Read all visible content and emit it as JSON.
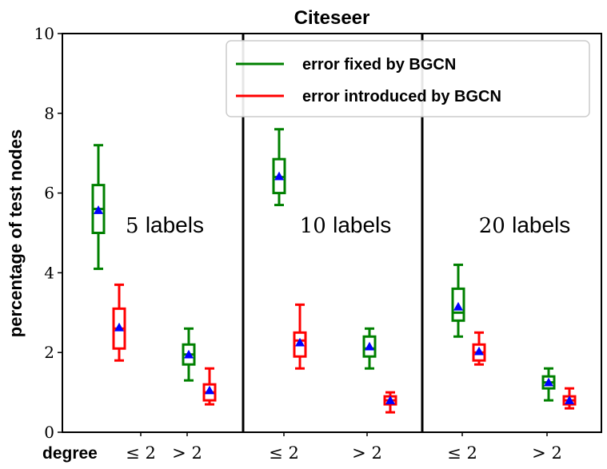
{
  "chart_data": {
    "type": "box",
    "title": "Citeseer",
    "ylabel": "percentage of test nodes",
    "ylim": [
      0,
      10
    ],
    "yticks": [
      "0",
      "2",
      "4",
      "6",
      "8",
      "10"
    ],
    "x_prefix": "degree",
    "groups": [
      {
        "label": "5 labels",
        "label_num": "5",
        "label_word": "labels",
        "categories": [
          {
            "tick": "≤ 2",
            "boxes": [
              {
                "series": 0,
                "whisker_low": 4.1,
                "q1": 5.0,
                "median": 5.6,
                "q3": 6.2,
                "whisker_high": 7.2,
                "mean": 5.57
              },
              {
                "series": 1,
                "whisker_low": 1.8,
                "q1": 2.1,
                "median": 2.6,
                "q3": 3.1,
                "whisker_high": 3.7,
                "mean": 2.63
              }
            ]
          },
          {
            "tick": "> 2",
            "boxes": [
              {
                "series": 0,
                "whisker_low": 1.3,
                "q1": 1.7,
                "median": 1.95,
                "q3": 2.2,
                "whisker_high": 2.6,
                "mean": 1.95
              },
              {
                "series": 1,
                "whisker_low": 0.7,
                "q1": 0.8,
                "median": 1.0,
                "q3": 1.2,
                "whisker_high": 1.6,
                "mean": 1.05
              }
            ]
          }
        ]
      },
      {
        "label": "10 labels",
        "label_num": "10",
        "label_word": "labels",
        "categories": [
          {
            "tick": "≤ 2",
            "boxes": [
              {
                "series": 0,
                "whisker_low": 5.7,
                "q1": 6.0,
                "median": 6.4,
                "q3": 6.85,
                "whisker_high": 7.6,
                "mean": 6.42
              },
              {
                "series": 1,
                "whisker_low": 1.6,
                "q1": 1.9,
                "median": 2.3,
                "q3": 2.5,
                "whisker_high": 3.2,
                "mean": 2.25
              }
            ]
          },
          {
            "tick": "> 2",
            "boxes": [
              {
                "series": 0,
                "whisker_low": 1.6,
                "q1": 1.9,
                "median": 2.1,
                "q3": 2.4,
                "whisker_high": 2.6,
                "mean": 2.15
              },
              {
                "series": 1,
                "whisker_low": 0.5,
                "q1": 0.7,
                "median": 0.8,
                "q3": 0.9,
                "whisker_high": 1.0,
                "mean": 0.8
              }
            ]
          }
        ]
      },
      {
        "label": "20 labels",
        "label_num": "20",
        "label_word": "labels",
        "categories": [
          {
            "tick": "≤ 2",
            "boxes": [
              {
                "series": 0,
                "whisker_low": 2.4,
                "q1": 2.8,
                "median": 3.0,
                "q3": 3.6,
                "whisker_high": 4.2,
                "mean": 3.15
              },
              {
                "series": 1,
                "whisker_low": 1.7,
                "q1": 1.8,
                "median": 2.0,
                "q3": 2.2,
                "whisker_high": 2.5,
                "mean": 2.03
              }
            ]
          },
          {
            "tick": "> 2",
            "boxes": [
              {
                "series": 0,
                "whisker_low": 0.8,
                "q1": 1.1,
                "median": 1.25,
                "q3": 1.4,
                "whisker_high": 1.6,
                "mean": 1.25
              },
              {
                "series": 1,
                "whisker_low": 0.6,
                "q1": 0.7,
                "median": 0.8,
                "q3": 0.9,
                "whisker_high": 1.1,
                "mean": 0.8
              }
            ]
          }
        ]
      }
    ],
    "series": [
      {
        "name": "error fixed by BGCN",
        "color": "#008000"
      },
      {
        "name": "error introduced by BGCN",
        "color": "#ff0000"
      }
    ],
    "mean_marker_color": "#0000ff",
    "legend_position": "top-right",
    "grid": false
  }
}
